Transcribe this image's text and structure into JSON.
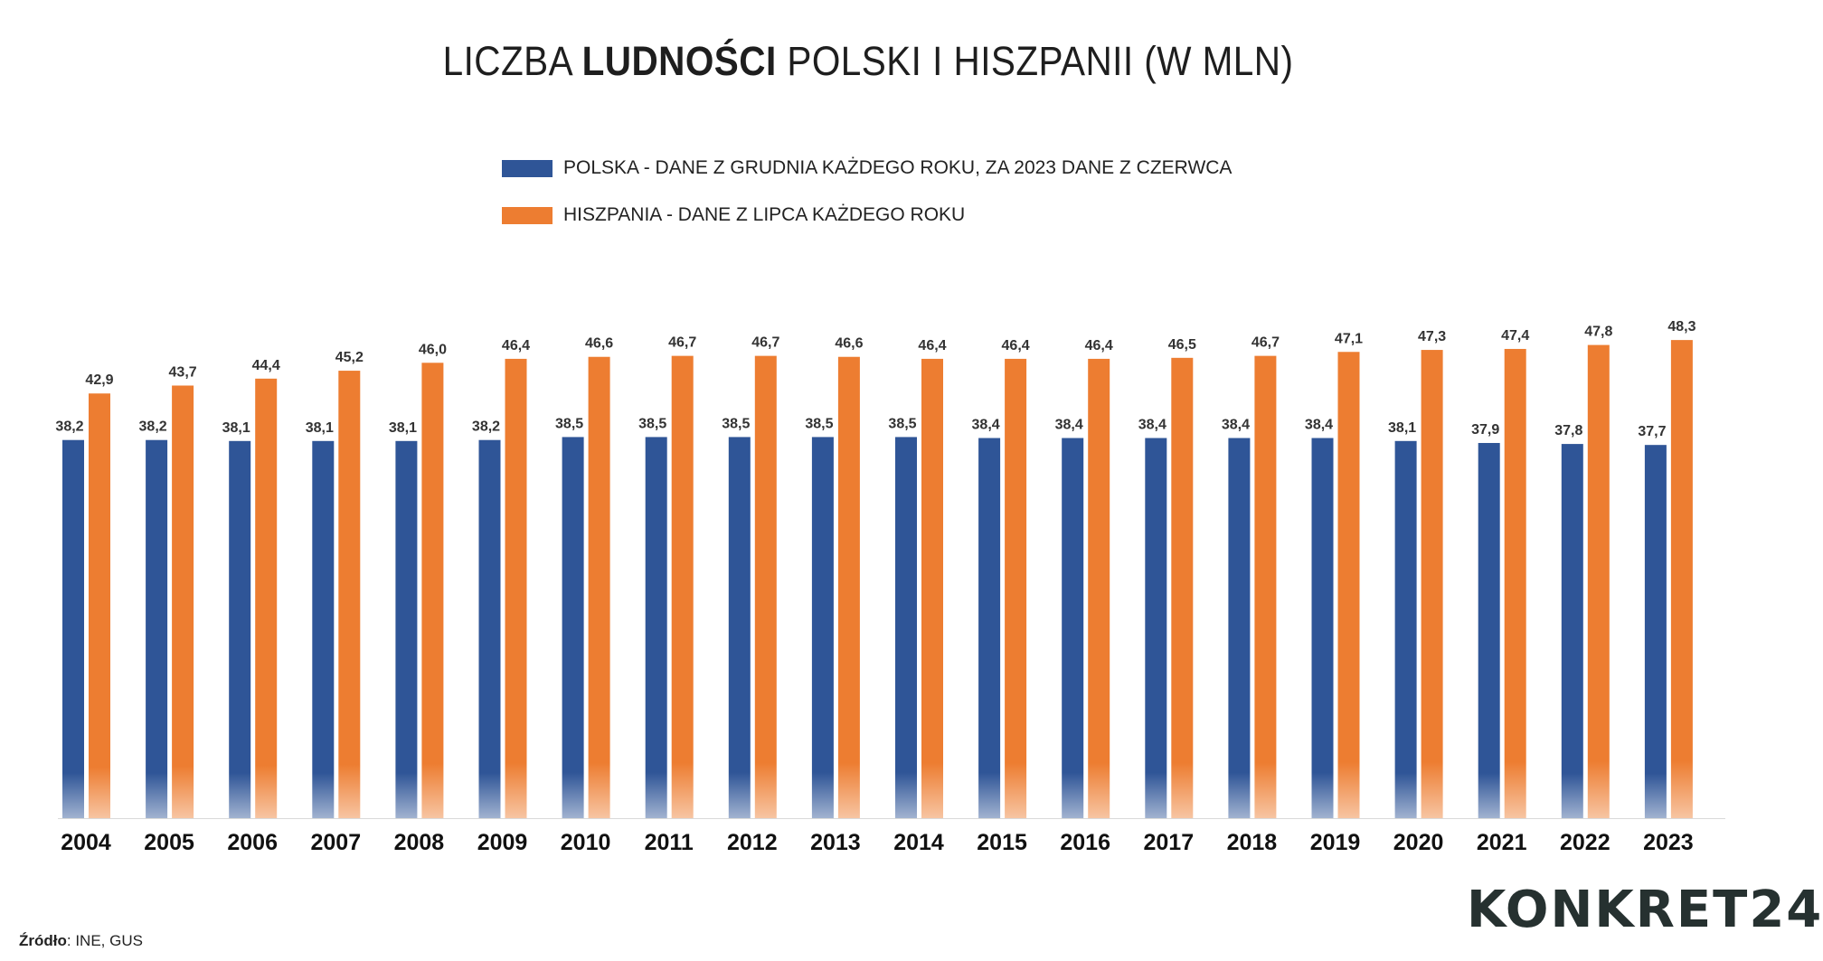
{
  "title": {
    "part1": "LICZBA ",
    "bold": "LUDNOŚCI",
    "part2": " POLSKI I HISZPANII (W MLN)"
  },
  "source": {
    "label": "Źródło",
    "text": ": INE, GUS"
  },
  "logo": "KONKRET24",
  "chart_data": {
    "type": "bar",
    "title": "LICZBA LUDNOŚCI POLSKI I HISZPANII (W MLN)",
    "categories": [
      "2004",
      "2005",
      "2006",
      "2007",
      "2008",
      "2009",
      "2010",
      "2011",
      "2012",
      "2013",
      "2014",
      "2015",
      "2016",
      "2017",
      "2018",
      "2019",
      "2020",
      "2021",
      "2022",
      "2023"
    ],
    "series": [
      {
        "name": "POLSKA - DANE Z GRUDNIA KAŻDEGO ROKU, ZA 2023 DANE Z CZERWCA",
        "color": "#2f5597",
        "values": [
          38.2,
          38.2,
          38.1,
          38.1,
          38.1,
          38.2,
          38.5,
          38.5,
          38.5,
          38.5,
          38.5,
          38.4,
          38.4,
          38.4,
          38.4,
          38.4,
          38.1,
          37.9,
          37.8,
          37.7
        ]
      },
      {
        "name": "HISZPANIA - DANE Z LIPCA KAŻDEGO ROKU",
        "color": "#ed7d31",
        "values": [
          42.9,
          43.7,
          44.4,
          45.2,
          46.0,
          46.4,
          46.6,
          46.7,
          46.7,
          46.6,
          46.4,
          46.4,
          46.4,
          46.5,
          46.7,
          47.1,
          47.3,
          47.4,
          47.8,
          48.3
        ]
      }
    ],
    "ylim": [
      0,
      50
    ],
    "grid": false,
    "legend": "top-center",
    "data_labels": true,
    "decimal_separator": ","
  }
}
